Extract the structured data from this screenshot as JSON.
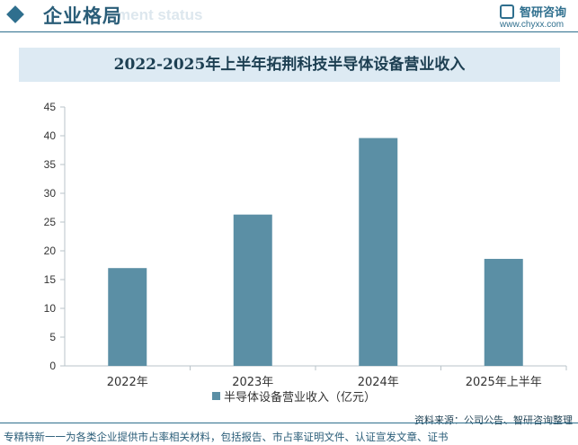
{
  "header": {
    "section_title": "企业格局",
    "ghost_text": "ment status",
    "logo_name": "智研咨询",
    "logo_url": "www.chyxx.com"
  },
  "colors": {
    "bar": "#5b8fa5",
    "accent": "#2f6f8e",
    "title_bg": "#ddeaf3"
  },
  "chart_data": {
    "type": "bar",
    "title": "2022-2025年上半年拓荆科技半导体设备营业收入",
    "categories": [
      "2022年",
      "2023年",
      "2024年",
      "2025年上半年"
    ],
    "series": [
      {
        "name": "半导体设备营业收入（亿元）",
        "values": [
          17.0,
          26.3,
          39.6,
          18.6
        ]
      }
    ],
    "ylim": [
      0,
      45
    ],
    "yticks": [
      0,
      5,
      10,
      15,
      20,
      25,
      30,
      35,
      40,
      45
    ],
    "xlabel": "",
    "ylabel": "",
    "grid": false,
    "legend": "bottom"
  },
  "footer": {
    "source": "资料来源：公司公告、智研咨询整理",
    "text": "专精特新一一为各类企业提供市占率相关材料，包括报告、市占率证明文件、认证宣发文章、证书"
  }
}
